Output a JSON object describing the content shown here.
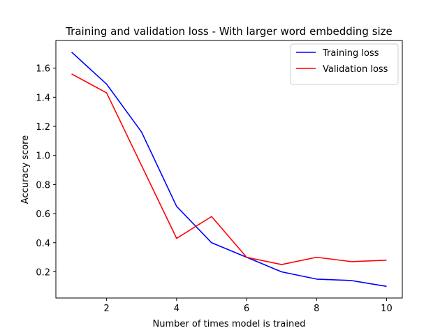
{
  "chart_data": {
    "type": "line",
    "title": "Training and validation loss - With larger word embedding size",
    "xlabel": "Number of times model is trained",
    "ylabel": "Accuracy score",
    "xlim": [
      0.55,
      10.45
    ],
    "ylim": [
      0.02,
      1.79
    ],
    "xticks": [
      2,
      4,
      6,
      8,
      10
    ],
    "yticks": [
      0.2,
      0.4,
      0.6,
      0.8,
      1.0,
      1.2,
      1.4,
      1.6
    ],
    "x": [
      1,
      2,
      3,
      4,
      5,
      6,
      7,
      8,
      9,
      10
    ],
    "series": [
      {
        "name": "Training loss",
        "color": "#0000ff",
        "values": [
          1.71,
          1.49,
          1.16,
          0.65,
          0.4,
          0.3,
          0.2,
          0.15,
          0.14,
          0.1
        ]
      },
      {
        "name": "Validation loss",
        "color": "#ff0000",
        "values": [
          1.56,
          1.43,
          0.93,
          0.43,
          0.58,
          0.3,
          0.25,
          0.3,
          0.27,
          0.28
        ]
      }
    ],
    "grid": false,
    "legend": "top-right"
  }
}
